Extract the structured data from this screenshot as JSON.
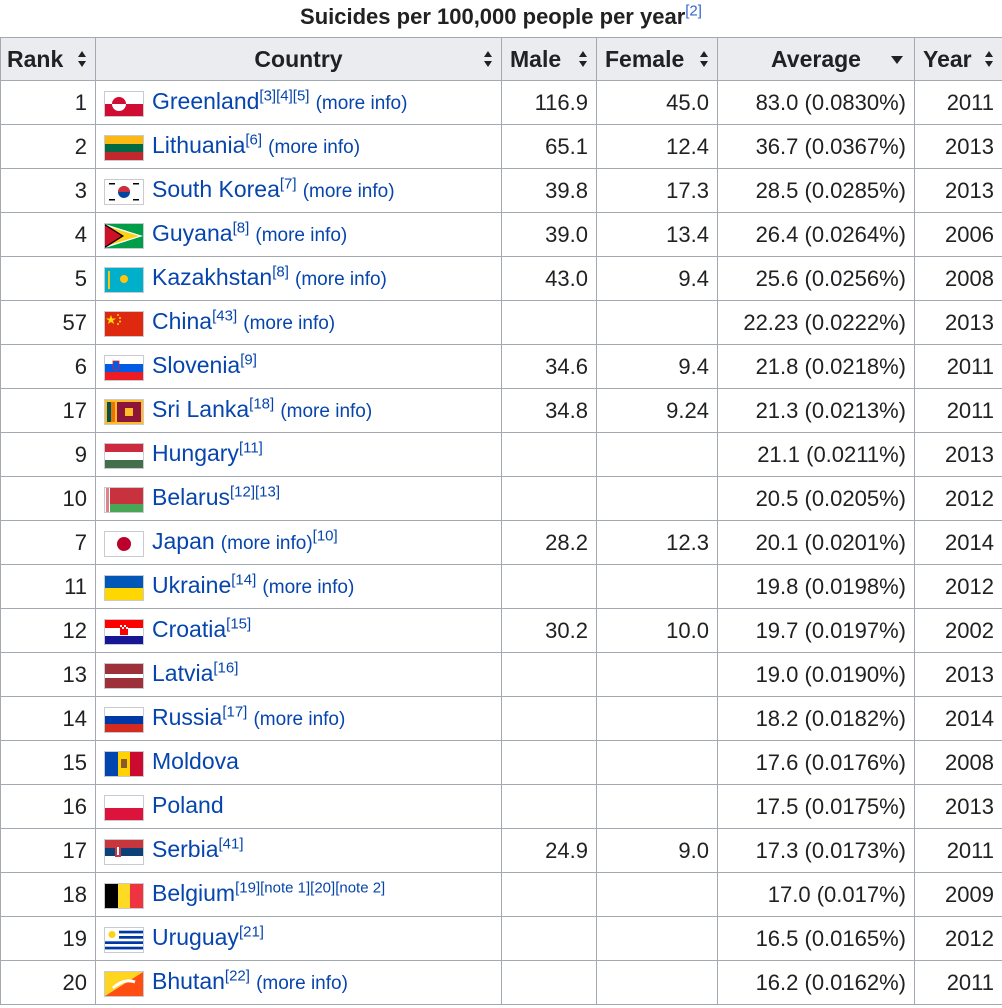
{
  "caption": {
    "text": "Suicides per 100,000 people per year",
    "ref": "[2]"
  },
  "headers": {
    "rank": "Rank",
    "country": "Country",
    "male": "Male",
    "female": "Female",
    "average": "Average",
    "year": "Year"
  },
  "sort_icons": {
    "rank": "sort-both-icon",
    "country": "sort-both-icon",
    "male": "sort-both-icon",
    "female": "sort-both-icon",
    "average": "sort-descending-icon",
    "year": "sort-both-icon"
  },
  "rows": [
    {
      "rank": "1",
      "country": "Greenland",
      "refs": "[3][4][5]",
      "more": "(more info)",
      "refs_after": "",
      "male": "116.9",
      "female": "45.0",
      "average": "83.0 (0.0830%)",
      "year": "2011",
      "flag": "greenland"
    },
    {
      "rank": "2",
      "country": "Lithuania",
      "refs": "[6]",
      "more": "(more info)",
      "refs_after": "",
      "male": "65.1",
      "female": "12.4",
      "average": "36.7 (0.0367%)",
      "year": "2013",
      "flag": "lithuania"
    },
    {
      "rank": "3",
      "country": "South Korea",
      "refs": "[7]",
      "more": "(more info)",
      "refs_after": "",
      "male": "39.8",
      "female": "17.3",
      "average": "28.5 (0.0285%)",
      "year": "2013",
      "flag": "southkorea"
    },
    {
      "rank": "4",
      "country": "Guyana",
      "refs": "[8]",
      "more": "(more info)",
      "refs_after": "",
      "male": "39.0",
      "female": "13.4",
      "average": "26.4 (0.0264%)",
      "year": "2006",
      "flag": "guyana"
    },
    {
      "rank": "5",
      "country": "Kazakhstan",
      "refs": "[8]",
      "more": "(more info)",
      "refs_after": "",
      "male": "43.0",
      "female": "9.4",
      "average": "25.6 (0.0256%)",
      "year": "2008",
      "flag": "kazakhstan"
    },
    {
      "rank": "57",
      "country": "China",
      "refs": "[43]",
      "more": "(more info)",
      "refs_after": "",
      "male": "",
      "female": "",
      "average": "22.23 (0.0222%)",
      "year": "2013",
      "flag": "china"
    },
    {
      "rank": "6",
      "country": "Slovenia",
      "refs": "[9]",
      "more": "",
      "refs_after": "",
      "male": "34.6",
      "female": "9.4",
      "average": "21.8 (0.0218%)",
      "year": "2011",
      "flag": "slovenia"
    },
    {
      "rank": "17",
      "country": "Sri Lanka",
      "refs": "[18]",
      "more": "(more info)",
      "refs_after": "",
      "male": "34.8",
      "female": "9.24",
      "average": "21.3 (0.0213%)",
      "year": "2011",
      "flag": "srilanka"
    },
    {
      "rank": "9",
      "country": "Hungary",
      "refs": "[11]",
      "more": "",
      "refs_after": "",
      "male": "",
      "female": "",
      "average": "21.1 (0.0211%)",
      "year": "2013",
      "flag": "hungary"
    },
    {
      "rank": "10",
      "country": "Belarus",
      "refs": "[12][13]",
      "more": "",
      "refs_after": "",
      "male": "",
      "female": "",
      "average": "20.5 (0.0205%)",
      "year": "2012",
      "flag": "belarus"
    },
    {
      "rank": "7",
      "country": "Japan",
      "refs": "",
      "more": "(more info)",
      "refs_after": "[10]",
      "male": "28.2",
      "female": "12.3",
      "average": "20.1 (0.0201%)",
      "year": "2014",
      "flag": "japan"
    },
    {
      "rank": "11",
      "country": "Ukraine",
      "refs": "[14]",
      "more": "(more info)",
      "refs_after": "",
      "male": "",
      "female": "",
      "average": "19.8 (0.0198%)",
      "year": "2012",
      "flag": "ukraine"
    },
    {
      "rank": "12",
      "country": "Croatia",
      "refs": "[15]",
      "more": "",
      "refs_after": "",
      "male": "30.2",
      "female": "10.0",
      "average": "19.7 (0.0197%)",
      "year": "2002",
      "flag": "croatia"
    },
    {
      "rank": "13",
      "country": "Latvia",
      "refs": "[16]",
      "more": "",
      "refs_after": "",
      "male": "",
      "female": "",
      "average": "19.0 (0.0190%)",
      "year": "2013",
      "flag": "latvia"
    },
    {
      "rank": "14",
      "country": "Russia",
      "refs": "[17]",
      "more": "(more info)",
      "refs_after": "",
      "male": "",
      "female": "",
      "average": "18.2 (0.0182%)",
      "year": "2014",
      "flag": "russia"
    },
    {
      "rank": "15",
      "country": "Moldova",
      "refs": "",
      "more": "",
      "refs_after": "",
      "male": "",
      "female": "",
      "average": "17.6 (0.0176%)",
      "year": "2008",
      "flag": "moldova"
    },
    {
      "rank": "16",
      "country": "Poland",
      "refs": "",
      "more": "",
      "refs_after": "",
      "male": "",
      "female": "",
      "average": "17.5 (0.0175%)",
      "year": "2013",
      "flag": "poland"
    },
    {
      "rank": "17",
      "country": "Serbia",
      "refs": "[41]",
      "more": "",
      "refs_after": "",
      "male": "24.9",
      "female": "9.0",
      "average": "17.3 (0.0173%)",
      "year": "2011",
      "flag": "serbia"
    },
    {
      "rank": "18",
      "country": "Belgium",
      "refs": "[19][note 1][20][note 2]",
      "more": "",
      "refs_after": "",
      "male": "",
      "female": "",
      "average": "17.0 (0.017%)",
      "year": "2009",
      "flag": "belgium"
    },
    {
      "rank": "19",
      "country": "Uruguay",
      "refs": "[21]",
      "more": "",
      "refs_after": "",
      "male": "",
      "female": "",
      "average": "16.5 (0.0165%)",
      "year": "2012",
      "flag": "uruguay"
    },
    {
      "rank": "20",
      "country": "Bhutan",
      "refs": "[22]",
      "more": "(more info)",
      "refs_after": "",
      "male": "",
      "female": "",
      "average": "16.2 (0.0162%)",
      "year": "2011",
      "flag": "bhutan"
    }
  ],
  "flag_colors": {
    "greenland": [
      "#ffffff",
      "#d00c33"
    ],
    "lithuania": [
      "#fdb913",
      "#006a44",
      "#c1272d"
    ],
    "southkorea": [
      "#ffffff",
      "#cd2e3a",
      "#0047a0",
      "#000000"
    ],
    "guyana": [
      "#009e49",
      "#ffffff",
      "#fcd116",
      "#000000",
      "#ce1126"
    ],
    "kazakhstan": [
      "#00afca",
      "#fec50c"
    ],
    "china": [
      "#de2910",
      "#ffde00"
    ],
    "slovenia": [
      "#ffffff",
      "#005ce5",
      "#ed1c24"
    ],
    "srilanka": [
      "#ffbe29",
      "#00534e",
      "#eb7400",
      "#8d153a"
    ],
    "hungary": [
      "#cd2a3e",
      "#ffffff",
      "#436f4d"
    ],
    "belarus": [
      "#c8313e",
      "#4aa657",
      "#ffffff"
    ],
    "japan": [
      "#ffffff",
      "#bc002d"
    ],
    "ukraine": [
      "#0057b7",
      "#ffd700"
    ],
    "croatia": [
      "#ff0000",
      "#ffffff",
      "#171796"
    ],
    "latvia": [
      "#9e3039",
      "#ffffff"
    ],
    "russia": [
      "#ffffff",
      "#0039a6",
      "#d52b1e"
    ],
    "moldova": [
      "#0046ae",
      "#ffd200",
      "#cc092f"
    ],
    "poland": [
      "#ffffff",
      "#dc143c"
    ],
    "serbia": [
      "#c6363c",
      "#0c4076",
      "#ffffff"
    ],
    "belgium": [
      "#000000",
      "#fdda24",
      "#ef3340"
    ],
    "uruguay": [
      "#ffffff",
      "#0038a8",
      "#fcd116"
    ],
    "bhutan": [
      "#ffd520",
      "#ff4e12"
    ]
  }
}
